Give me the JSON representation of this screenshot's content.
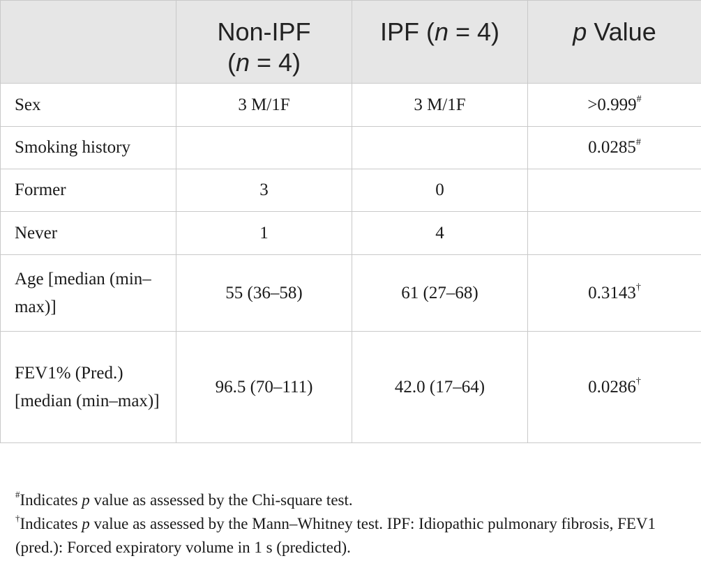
{
  "table": {
    "headers": {
      "h0": "",
      "h1_a": "Non-IPF",
      "h1_b_open": "(",
      "h1_b_n": "n",
      "h1_b_rest": " = 4)",
      "h2_a": "IPF (",
      "h2_n": "n",
      "h2_rest": " = 4)",
      "h3_p": "p",
      "h3_rest": " Value"
    },
    "rows": [
      {
        "label": "Sex",
        "non_ipf": "3 M/1F",
        "ipf": "3 M/1F",
        "p": ">0.999",
        "mark": "#"
      },
      {
        "label": "Smoking history",
        "non_ipf": "",
        "ipf": "",
        "p": "0.0285",
        "mark": "#"
      },
      {
        "label": "Former",
        "non_ipf": "3",
        "ipf": "0",
        "p": "",
        "mark": ""
      },
      {
        "label": "Never",
        "non_ipf": "1",
        "ipf": "4",
        "p": "",
        "mark": ""
      },
      {
        "label": "Age [median (min–max)]",
        "non_ipf": "55 (36–58)",
        "ipf": "61 (27–68)",
        "p": "0.3143",
        "mark": "†"
      },
      {
        "label": "FEV1% (Pred.) [median (min–max)]",
        "non_ipf": "96.5 (70–111)",
        "ipf": "42.0 (17–64)",
        "p": "0.0286",
        "mark": "†"
      }
    ]
  },
  "footnotes": [
    {
      "mark": "#",
      "pre": "Indicates ",
      "p": "p",
      "post": " value as assessed by the Chi-square test."
    },
    {
      "mark": "†",
      "pre": "Indicates ",
      "p": "p",
      "post": " value as assessed by the Mann–Whitney test. IPF: Idiopathic pulmonary fibrosis, FEV1 (pred.): Forced expiratory volume in 1 s (predicted)."
    }
  ]
}
